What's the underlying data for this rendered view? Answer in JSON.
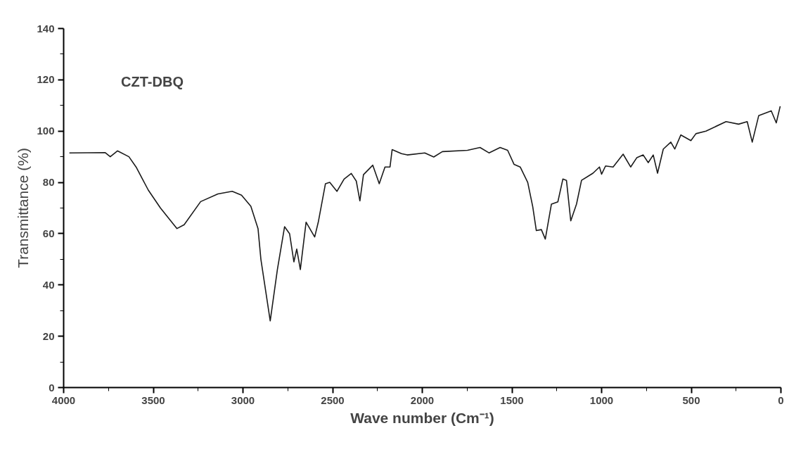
{
  "chart_data": {
    "type": "line",
    "xlabel": "Wave number (Cm⁻¹)",
    "ylabel": "Transmittance (%)",
    "annotations": [
      "CZT-DBQ"
    ],
    "xlim": [
      4000,
      0
    ],
    "ylim": [
      0,
      140
    ],
    "xticks": [
      4000,
      {
        "value": 3750,
        "label": null
      },
      3500,
      {
        "value": 3250,
        "label": null
      },
      3000,
      {
        "value": 2750,
        "label": null
      },
      2500,
      {
        "value": 2250,
        "label": null
      },
      2000,
      {
        "value": 1750,
        "label": null
      },
      1500,
      {
        "value": 1250,
        "label": null
      },
      1000,
      {
        "value": 750,
        "label": null
      },
      500,
      {
        "value": 250,
        "label": null
      },
      0
    ],
    "yticks": [
      0,
      {
        "value": 10,
        "label": null
      },
      20,
      {
        "value": 30,
        "label": null
      },
      40,
      {
        "value": 50,
        "label": null
      },
      60,
      {
        "value": 70,
        "label": null
      },
      80,
      {
        "value": 90,
        "label": null
      },
      100,
      {
        "value": 110,
        "label": null
      },
      120,
      {
        "value": 130,
        "label": null
      },
      140
    ],
    "grid": false,
    "line_style": "solid",
    "series": [
      {
        "color": "#1a1a1a",
        "x": [
          3968,
          3768,
          3740,
          3700,
          3636,
          3596,
          3528,
          3460,
          3368,
          3328,
          3236,
          3140,
          3060,
          3008,
          2956,
          2916,
          2900,
          2848,
          2808,
          2768,
          2740,
          2716,
          2700,
          2680,
          2648,
          2600,
          2580,
          2540,
          2516,
          2476,
          2436,
          2396,
          2368,
          2348,
          2328,
          2276,
          2240,
          2208,
          2180,
          2168,
          2116,
          2084,
          1986,
          1936,
          1888,
          1748,
          1678,
          1628,
          1566,
          1524,
          1488,
          1454,
          1412,
          1384,
          1364,
          1336,
          1314,
          1280,
          1244,
          1216,
          1196,
          1172,
          1140,
          1112,
          1048,
          1012,
          1000,
          978,
          936,
          880,
          838,
          804,
          768,
          740,
          712,
          688,
          656,
          614,
          592,
          558,
          502,
          474,
          418,
          306,
          236,
          188,
          160,
          124,
          54,
          26,
          4
        ],
        "values": [
          91.5,
          91.6,
          90,
          92.3,
          90,
          86,
          77,
          70,
          62,
          63.5,
          72.5,
          75.5,
          76.5,
          75,
          70.7,
          62,
          50,
          26,
          46,
          62.7,
          60,
          49,
          54,
          46,
          64.5,
          58.7,
          64.5,
          79.5,
          80,
          76.5,
          81.3,
          83.5,
          80.5,
          72.8,
          83,
          86.7,
          79.5,
          86,
          86,
          92.8,
          91.2,
          90.7,
          91.5,
          89.9,
          92,
          92.5,
          93.6,
          91.5,
          93.6,
          92.5,
          87,
          86,
          80,
          70.5,
          61.2,
          61.6,
          57.9,
          71.5,
          72.4,
          81.3,
          80.8,
          65,
          71.5,
          80.8,
          83.6,
          86,
          83.2,
          86.4,
          86,
          91,
          86,
          89.6,
          90.7,
          87.7,
          90.7,
          83.6,
          93,
          95.7,
          93,
          98.5,
          96.3,
          99,
          100,
          103.7,
          102.7,
          103.7,
          95.7,
          106,
          107.9,
          103.2,
          109.7
        ]
      }
    ]
  }
}
